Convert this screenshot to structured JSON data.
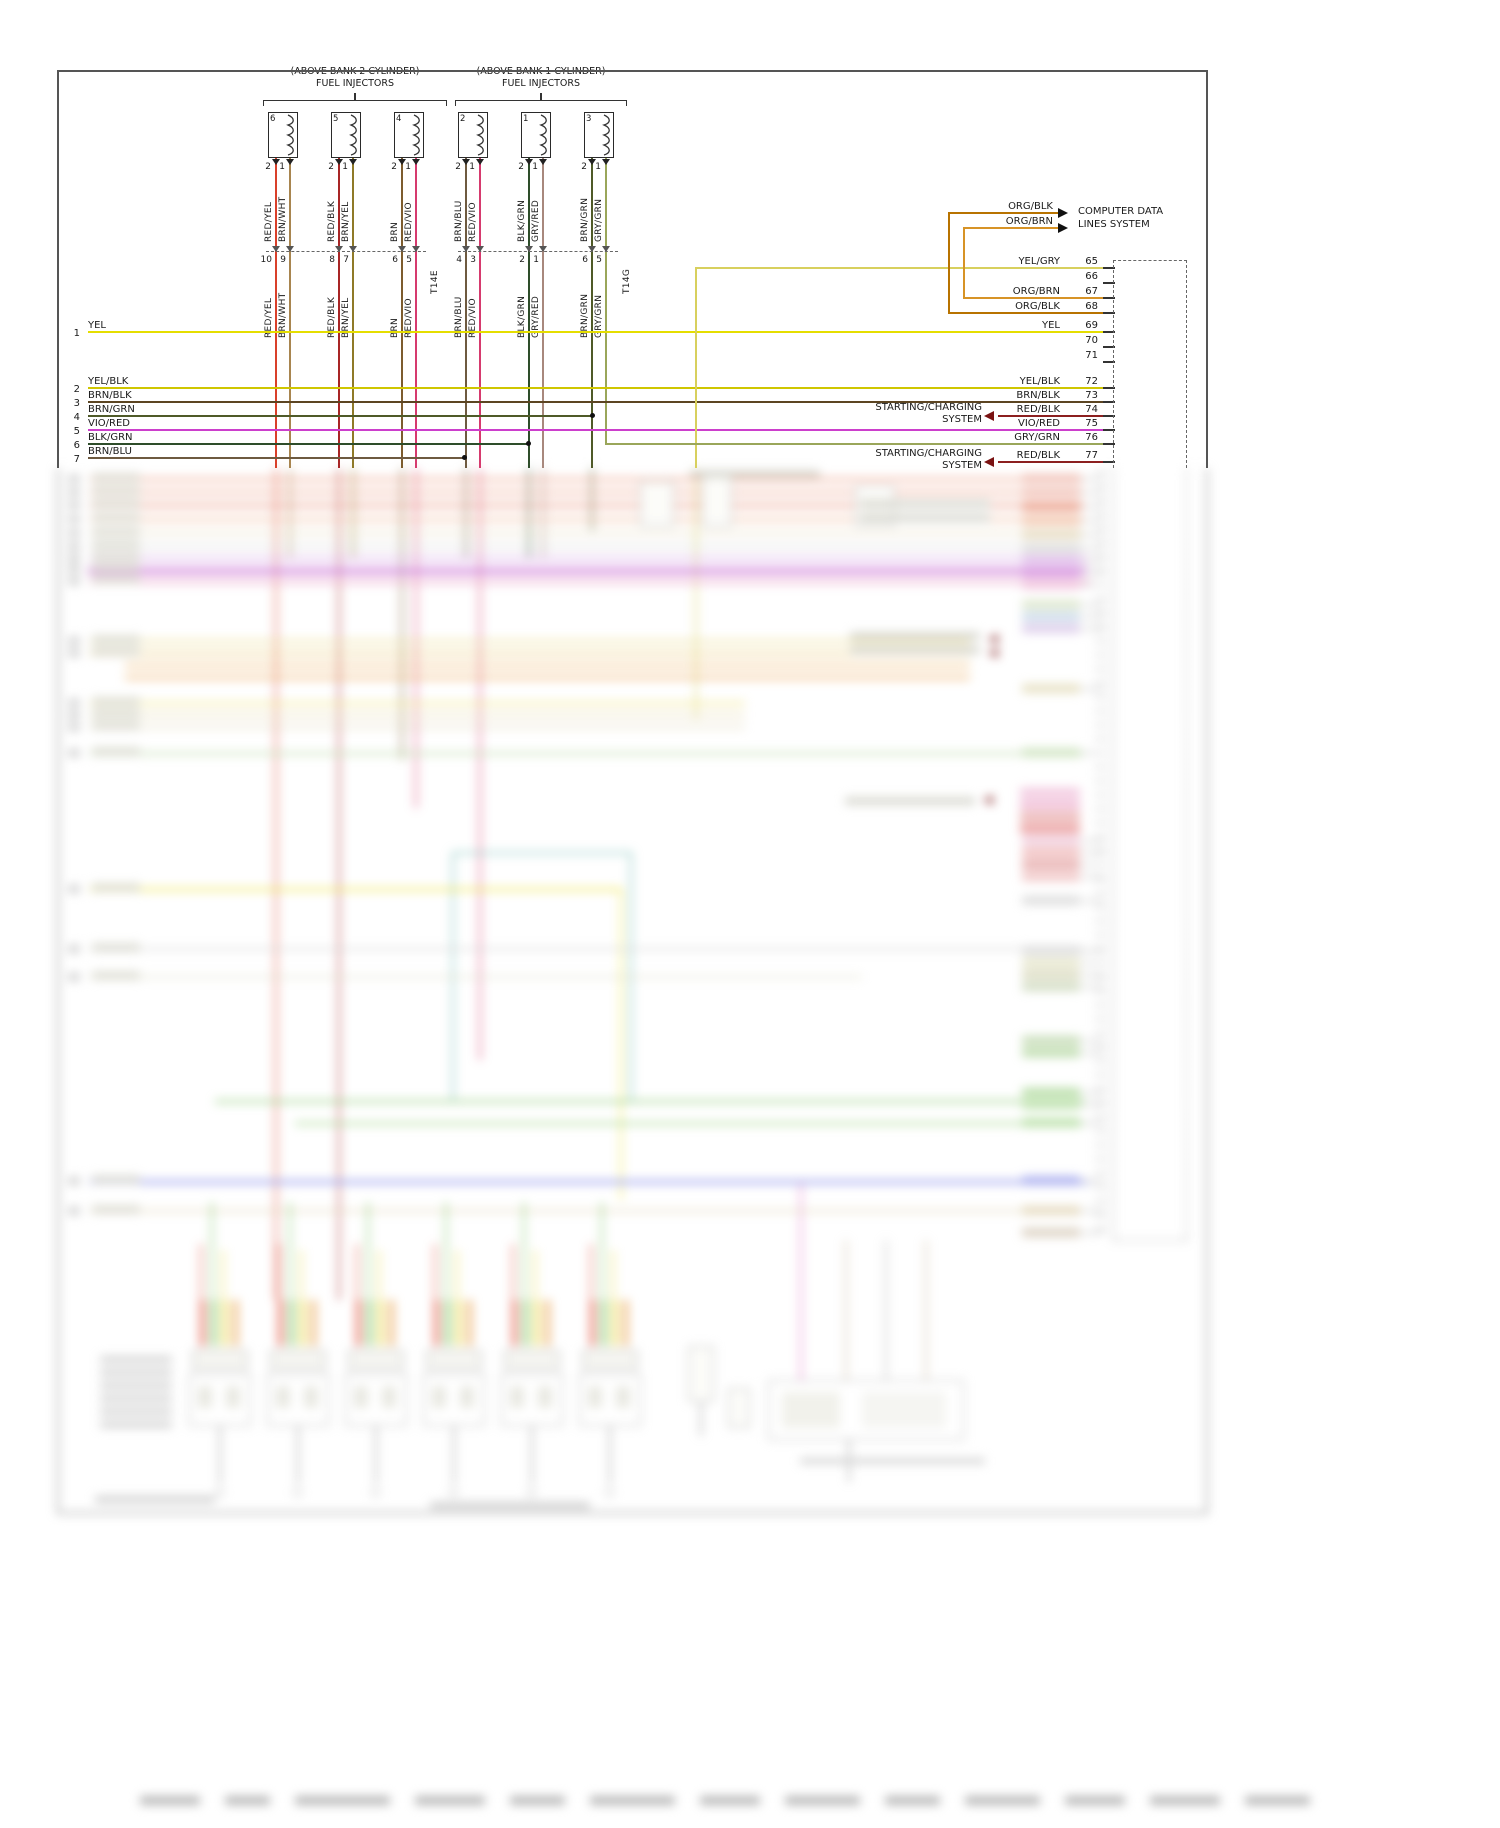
{
  "headers": {
    "bank2_line1": "(ABOVE BANK 2 CYLINDER)",
    "bank2_line2": "FUEL INJECTORS",
    "bank1_line1": "(ABOVE BANK 1 CYLINDER)",
    "bank1_line2": "FUEL INJECTORS"
  },
  "colors": {
    "RED_YEL": "#d9402a",
    "BRN_WHT": "#a8854f",
    "RED_BLK": "#a82525",
    "BRN_YEL": "#8f7a28",
    "BRN": "#7d5c2e",
    "RED_VIO": "#d63a6e",
    "BRN_BLU": "#6e5a40",
    "BLK_GRN": "#2e4d2a",
    "GRY_RED": "#a8887d",
    "BRN_GRN": "#4f5a28",
    "GRY_GRN": "#9aa65a",
    "YEL": "#e5de00",
    "YEL_BLK": "#cfc600",
    "BRN_BLK": "#5c4522",
    "VIO_RED": "#cc3fcc",
    "YEL_GRY": "#d8d05e",
    "ORG_BLK": "#b87300",
    "ORG_BRN": "#d79326",
    "RED_BLK_DK": "#8c1f1f"
  },
  "injectors": [
    {
      "number": "6",
      "pins": [
        {
          "pin": "2",
          "wire": "RED/YEL",
          "conn": "10",
          "color": "#d9402a"
        },
        {
          "pin": "1",
          "wire": "BRN/WHT",
          "conn": "9",
          "color": "#a8854f"
        }
      ]
    },
    {
      "number": "5",
      "pins": [
        {
          "pin": "2",
          "wire": "RED/BLK",
          "conn": "8",
          "color": "#a82525"
        },
        {
          "pin": "1",
          "wire": "BRN/YEL",
          "conn": "7",
          "color": "#8f7a28"
        }
      ]
    },
    {
      "number": "4",
      "pins": [
        {
          "pin": "2",
          "wire": "BRN",
          "conn": "6",
          "color": "#7d5c2e"
        },
        {
          "pin": "1",
          "wire": "RED/VIO",
          "conn": "5",
          "color": "#d63a6e"
        }
      ]
    },
    {
      "number": "2",
      "pins": [
        {
          "pin": "2",
          "wire": "BRN/BLU",
          "conn": "4",
          "color": "#6e5a40"
        },
        {
          "pin": "1",
          "wire": "RED/VIO",
          "conn": "3",
          "color": "#d63a6e"
        }
      ]
    },
    {
      "number": "1",
      "pins": [
        {
          "pin": "2",
          "wire": "BLK/GRN",
          "conn": "2",
          "color": "#2e4d2a"
        },
        {
          "pin": "1",
          "wire": "GRY/RED",
          "conn": "1",
          "color": "#a8887d"
        }
      ]
    },
    {
      "number": "3",
      "pins": [
        {
          "pin": "2",
          "wire": "BRN/GRN",
          "conn": "6",
          "color": "#4f5a28"
        },
        {
          "pin": "1",
          "wire": "GRY/GRN",
          "conn": "5",
          "color": "#9aa65a"
        }
      ]
    }
  ],
  "connector_labels": {
    "t14e": "T14E",
    "t14g": "T14G"
  },
  "left_rows": [
    {
      "num": "1",
      "label": "YEL",
      "color": "#e5de00"
    },
    {
      "num": "2",
      "label": "YEL/BLK",
      "color": "#cfc600"
    },
    {
      "num": "3",
      "label": "BRN/BLK",
      "color": "#5c4522"
    },
    {
      "num": "4",
      "label": "BRN/GRN",
      "color": "#4f5a28"
    },
    {
      "num": "5",
      "label": "VIO/RED",
      "color": "#cc3fcc"
    },
    {
      "num": "6",
      "label": "BLK/GRN",
      "color": "#2e4d2a"
    },
    {
      "num": "7",
      "label": "BRN/BLU",
      "color": "#6e5a40"
    }
  ],
  "right_pins": [
    {
      "num": "65",
      "label": "YEL/GRY"
    },
    {
      "num": "66",
      "label": ""
    },
    {
      "num": "67",
      "label": "ORG/BRN"
    },
    {
      "num": "68",
      "label": "ORG/BLK"
    },
    {
      "num": "69",
      "label": "YEL"
    },
    {
      "num": "70",
      "label": ""
    },
    {
      "num": "71",
      "label": ""
    },
    {
      "num": "72",
      "label": "YEL/BLK"
    },
    {
      "num": "73",
      "label": "BRN/BLK"
    },
    {
      "num": "74",
      "label": "RED/BLK"
    },
    {
      "num": "75",
      "label": "VIO/RED"
    },
    {
      "num": "76",
      "label": "GRY/GRN"
    },
    {
      "num": "77",
      "label": "RED/BLK"
    }
  ],
  "computer_data": {
    "line1": "COMPUTER DATA",
    "line2": "LINES SYSTEM",
    "wire1": "ORG/BLK",
    "wire2": "ORG/BRN"
  },
  "starting_charging": {
    "line1": "STARTING/CHARGING",
    "line2": "SYSTEM"
  }
}
